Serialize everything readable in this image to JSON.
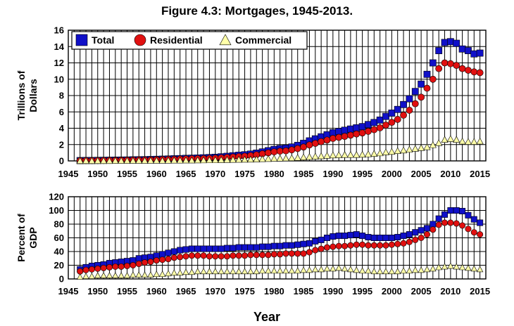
{
  "figure": {
    "title": "Figure 4.3: Mortgages, 1945-2013."
  },
  "colors": {
    "total": "#1010c8",
    "residential": "#e01010",
    "commercial": "#ffffa8",
    "grid": "#000000"
  },
  "chart_data": [
    {
      "type": "scatter",
      "panel": "top",
      "ylabel": [
        "Trillions of",
        "Dollars"
      ],
      "xlabel": "",
      "xlim": [
        1945,
        2016
      ],
      "ylim": [
        0,
        16
      ],
      "xticks": [
        1945,
        1950,
        1955,
        1960,
        1965,
        1970,
        1975,
        1980,
        1985,
        1990,
        1995,
        2000,
        2005,
        2010,
        2015
      ],
      "yticks": [
        0,
        2,
        4,
        6,
        8,
        10,
        12,
        14,
        16
      ],
      "grid": true,
      "legend": {
        "position": "top-left",
        "entries": [
          "Total",
          "Residential",
          "Commercial"
        ]
      },
      "x": [
        1947,
        1948,
        1949,
        1950,
        1951,
        1952,
        1953,
        1954,
        1955,
        1956,
        1957,
        1958,
        1959,
        1960,
        1961,
        1962,
        1963,
        1964,
        1965,
        1966,
        1967,
        1968,
        1969,
        1970,
        1971,
        1972,
        1973,
        1974,
        1975,
        1976,
        1977,
        1978,
        1979,
        1980,
        1981,
        1982,
        1983,
        1984,
        1985,
        1986,
        1987,
        1988,
        1989,
        1990,
        1991,
        1992,
        1993,
        1994,
        1995,
        1996,
        1997,
        1998,
        1999,
        2000,
        2001,
        2002,
        2003,
        2004,
        2005,
        2006,
        2007,
        2008,
        2009,
        2010,
        2011,
        2012,
        2013,
        2014,
        2015
      ],
      "series": [
        {
          "name": "Total",
          "marker": "square",
          "values": [
            0.04,
            0.05,
            0.05,
            0.06,
            0.07,
            0.08,
            0.09,
            0.1,
            0.11,
            0.13,
            0.14,
            0.15,
            0.17,
            0.19,
            0.21,
            0.23,
            0.26,
            0.28,
            0.31,
            0.33,
            0.35,
            0.38,
            0.41,
            0.44,
            0.5,
            0.56,
            0.63,
            0.69,
            0.75,
            0.83,
            0.95,
            1.1,
            1.25,
            1.4,
            1.5,
            1.56,
            1.7,
            1.9,
            2.15,
            2.45,
            2.7,
            2.95,
            3.2,
            3.45,
            3.6,
            3.75,
            3.9,
            4.05,
            4.2,
            4.45,
            4.7,
            5.0,
            5.45,
            5.85,
            6.3,
            6.9,
            7.6,
            8.5,
            9.4,
            10.6,
            12.0,
            13.5,
            14.5,
            14.6,
            14.4,
            13.7,
            13.5,
            13.1,
            13.2
          ]
        },
        {
          "name": "Residential",
          "marker": "circle",
          "values": [
            0.03,
            0.04,
            0.04,
            0.05,
            0.06,
            0.07,
            0.07,
            0.08,
            0.09,
            0.1,
            0.11,
            0.12,
            0.13,
            0.15,
            0.17,
            0.18,
            0.2,
            0.22,
            0.24,
            0.26,
            0.27,
            0.29,
            0.31,
            0.34,
            0.38,
            0.43,
            0.48,
            0.53,
            0.58,
            0.65,
            0.75,
            0.87,
            0.99,
            1.11,
            1.19,
            1.23,
            1.35,
            1.51,
            1.7,
            1.95,
            2.15,
            2.36,
            2.55,
            2.75,
            2.88,
            3.0,
            3.15,
            3.3,
            3.42,
            3.62,
            3.82,
            4.05,
            4.38,
            4.72,
            5.08,
            5.6,
            6.2,
            7.0,
            7.8,
            8.9,
            10.0,
            11.3,
            12.0,
            11.9,
            11.7,
            11.3,
            11.1,
            10.9,
            10.8
          ]
        },
        {
          "name": "Commercial",
          "marker": "triangle",
          "values": [
            0.01,
            0.01,
            0.01,
            0.01,
            0.01,
            0.01,
            0.02,
            0.02,
            0.02,
            0.03,
            0.03,
            0.03,
            0.04,
            0.04,
            0.04,
            0.05,
            0.06,
            0.06,
            0.07,
            0.07,
            0.08,
            0.09,
            0.1,
            0.1,
            0.12,
            0.13,
            0.15,
            0.16,
            0.17,
            0.18,
            0.2,
            0.23,
            0.26,
            0.29,
            0.31,
            0.33,
            0.35,
            0.39,
            0.45,
            0.5,
            0.55,
            0.59,
            0.65,
            0.7,
            0.72,
            0.75,
            0.75,
            0.75,
            0.78,
            0.83,
            0.88,
            0.95,
            1.07,
            1.13,
            1.22,
            1.3,
            1.4,
            1.5,
            1.6,
            1.7,
            1.95,
            2.2,
            2.6,
            2.7,
            2.6,
            2.4,
            2.35,
            2.35,
            2.4
          ]
        }
      ]
    },
    {
      "type": "scatter",
      "panel": "bottom",
      "ylabel": [
        "Percent of",
        "GDP"
      ],
      "xlabel": "Year",
      "xlim": [
        1945,
        2016
      ],
      "ylim": [
        0,
        120
      ],
      "xticks": [
        1945,
        1950,
        1955,
        1960,
        1965,
        1970,
        1975,
        1980,
        1985,
        1990,
        1995,
        2000,
        2005,
        2010,
        2015
      ],
      "yticks": [
        0,
        20,
        40,
        60,
        80,
        100,
        120
      ],
      "grid": true,
      "x": [
        1947,
        1948,
        1949,
        1950,
        1951,
        1952,
        1953,
        1954,
        1955,
        1956,
        1957,
        1958,
        1959,
        1960,
        1961,
        1962,
        1963,
        1964,
        1965,
        1966,
        1967,
        1968,
        1969,
        1970,
        1971,
        1972,
        1973,
        1974,
        1975,
        1976,
        1977,
        1978,
        1979,
        1980,
        1981,
        1982,
        1983,
        1984,
        1985,
        1986,
        1987,
        1988,
        1989,
        1990,
        1991,
        1992,
        1993,
        1994,
        1995,
        1996,
        1997,
        1998,
        1999,
        2000,
        2001,
        2002,
        2003,
        2004,
        2005,
        2006,
        2007,
        2008,
        2009,
        2010,
        2011,
        2012,
        2013,
        2014,
        2015
      ],
      "series": [
        {
          "name": "Total",
          "marker": "square",
          "values": [
            14,
            17,
            19,
            20,
            21,
            23,
            24,
            25,
            26,
            27,
            30,
            31,
            32,
            34,
            36,
            38,
            40,
            42,
            43,
            44,
            44,
            44,
            44,
            44,
            44,
            45,
            45,
            46,
            46,
            46,
            46,
            47,
            47,
            48,
            48,
            49,
            49,
            50,
            51,
            52,
            55,
            57,
            60,
            62,
            63,
            63,
            64,
            65,
            63,
            61,
            60,
            60,
            60,
            60,
            61,
            63,
            65,
            68,
            71,
            74,
            80,
            88,
            94,
            100,
            100,
            99,
            93,
            87,
            82
          ]
        },
        {
          "name": "Residential",
          "marker": "circle",
          "values": [
            11,
            13,
            14,
            15,
            16,
            17,
            18,
            18,
            19,
            20,
            22,
            24,
            25,
            27,
            28,
            29,
            31,
            32,
            33,
            34,
            34,
            34,
            33,
            33,
            33,
            33,
            34,
            34,
            34,
            35,
            35,
            35,
            35,
            36,
            36,
            37,
            37,
            37,
            37,
            39,
            42,
            44,
            46,
            47,
            48,
            48,
            49,
            50,
            50,
            49,
            49,
            49,
            49,
            50,
            51,
            52,
            54,
            57,
            60,
            65,
            72,
            79,
            82,
            82,
            81,
            78,
            73,
            68,
            65
          ]
        },
        {
          "name": "Commercial",
          "marker": "triangle",
          "values": [
            3,
            4,
            4,
            5,
            5,
            5,
            5,
            5,
            5,
            6,
            6,
            6,
            6,
            7,
            7,
            8,
            9,
            9,
            10,
            10,
            11,
            11,
            11,
            11,
            11,
            11,
            11,
            11,
            11,
            11,
            11,
            12,
            12,
            12,
            12,
            12,
            12,
            12,
            13,
            13,
            14,
            14,
            15,
            15,
            16,
            15,
            14,
            13,
            12,
            12,
            11,
            11,
            11,
            11,
            11,
            12,
            12,
            13,
            13,
            14,
            15,
            17,
            18,
            19,
            18,
            17,
            16,
            15,
            14
          ]
        }
      ]
    }
  ]
}
